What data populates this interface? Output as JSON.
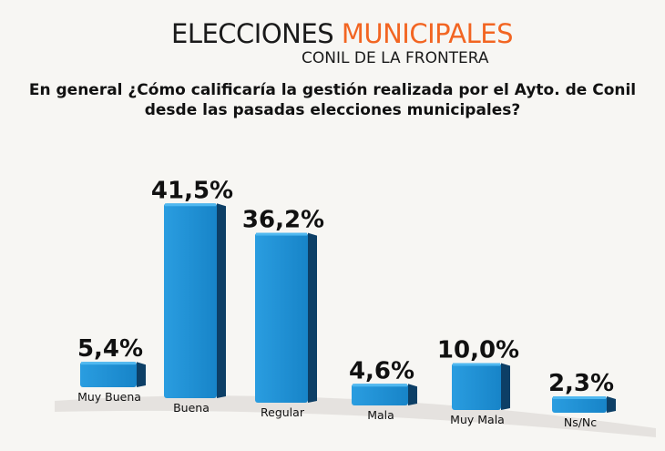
{
  "header": {
    "title_part1": "ELECCIONES",
    "title_part2": "MUNICIPALES",
    "subtitle": "CONIL DE LA FRONTERA"
  },
  "chart_data": {
    "type": "bar",
    "title": "En general ¿Cómo calificaría la gestión realizada por el Ayto. de Conil desde las pasadas elecciones municipales?",
    "categories": [
      "Muy Buena",
      "Buena",
      "Regular",
      "Mala",
      "Muy Mala",
      "Ns/Nc"
    ],
    "values": [
      5.4,
      41.5,
      36.2,
      4.6,
      10.0,
      2.3
    ],
    "value_labels": [
      "5,4%",
      "41,5%",
      "36,2%",
      "4,6%",
      "10,0%",
      "2,3%"
    ],
    "unit": "%",
    "bar_color": "#1b8fd6",
    "accent_color": "#f26522",
    "grid": false,
    "legend": "none"
  }
}
